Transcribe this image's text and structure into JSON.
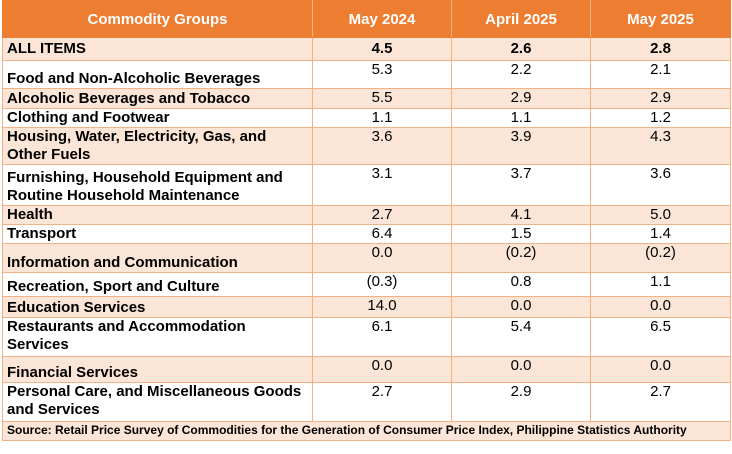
{
  "table": {
    "headers": [
      "Commodity Groups",
      "May 2024",
      "April 2025",
      "May 2025"
    ],
    "rows": [
      {
        "group": "ALL ITEMS",
        "may2024": "4.5",
        "apr2025": "2.6",
        "may2025": "2.8"
      },
      {
        "group": "Food and Non-Alcoholic Beverages",
        "may2024": "5.3",
        "apr2025": "2.2",
        "may2025": "2.1"
      },
      {
        "group": "Alcoholic Beverages and Tobacco",
        "may2024": "5.5",
        "apr2025": "2.9",
        "may2025": "2.9"
      },
      {
        "group": "Clothing and Footwear",
        "may2024": "1.1",
        "apr2025": "1.1",
        "may2025": "1.2"
      },
      {
        "group": "Housing, Water, Electricity, Gas, and Other Fuels",
        "may2024": "3.6",
        "apr2025": "3.9",
        "may2025": "4.3"
      },
      {
        "group": "Furnishing, Household Equipment and Routine Household Maintenance",
        "may2024": "3.1",
        "apr2025": "3.7",
        "may2025": "3.6"
      },
      {
        "group": "Health",
        "may2024": "2.7",
        "apr2025": "4.1",
        "may2025": "5.0"
      },
      {
        "group": "Transport",
        "may2024": "6.4",
        "apr2025": "1.5",
        "may2025": "1.4"
      },
      {
        "group": "Information and Communication",
        "may2024": "0.0",
        "apr2025": "(0.2)",
        "may2025": "(0.2)"
      },
      {
        "group": "Recreation, Sport and Culture",
        "may2024": "(0.3)",
        "apr2025": "0.8",
        "may2025": "1.1"
      },
      {
        "group": "Education Services",
        "may2024": "14.0",
        "apr2025": "0.0",
        "may2025": "0.0"
      },
      {
        "group": "Restaurants and Accommodation Services",
        "may2024": "6.1",
        "apr2025": "5.4",
        "may2025": "6.5"
      },
      {
        "group": "Financial Services",
        "may2024": "0.0",
        "apr2025": "0.0",
        "may2025": "0.0"
      },
      {
        "group": "Personal Care, and Miscellaneous Goods and Services",
        "may2024": "2.7",
        "apr2025": "2.9",
        "may2025": "2.7"
      }
    ],
    "source": "Source: Retail Price Survey of Commodities for the Generation of Consumer Price Index, Philippine Statistics Authority"
  },
  "colors": {
    "header_bg": "#ed7d31",
    "header_text": "#ffffff",
    "shade_row": "#fbe5d6",
    "border": "#f4b183"
  }
}
